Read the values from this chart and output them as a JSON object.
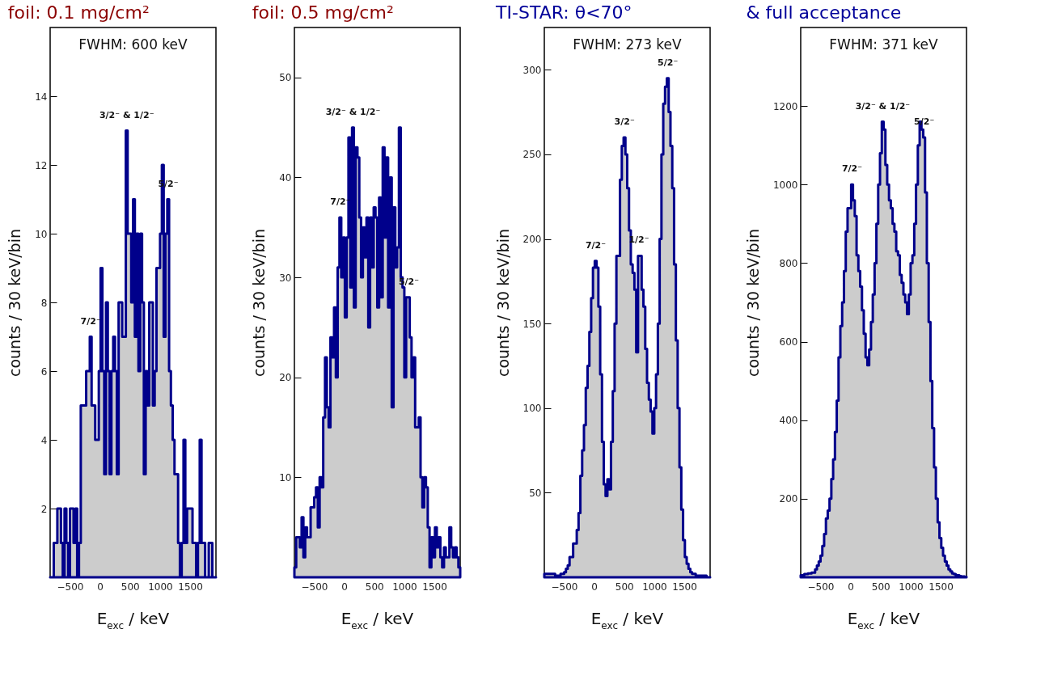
{
  "chart_data": [
    {
      "type": "histogram",
      "title": "foil: 0.1 mg/cm²",
      "xlabel": "E$_{exc}$ / keV",
      "ylabel": "counts / 30 keV/bin",
      "color": "#00008b",
      "xlim": [
        -830,
        1930
      ],
      "xticks": [
        -500,
        0,
        500,
        1000,
        1500
      ],
      "ylim": [
        0,
        16
      ],
      "yticks": [
        2,
        4,
        6,
        8,
        10,
        12,
        14
      ],
      "bins": [
        -830,
        -800,
        -770,
        -740,
        -710,
        -680,
        -650,
        -620,
        -590,
        -560,
        -530,
        -500,
        -470,
        -440,
        -410,
        -380,
        -350,
        -320,
        -290,
        -260,
        -230,
        -200,
        -170,
        -140,
        -110,
        -80,
        -50,
        -20,
        10,
        40,
        70,
        100,
        130,
        160,
        190,
        220,
        250,
        280,
        310,
        340,
        370,
        400,
        430,
        460,
        490,
        520,
        550,
        580,
        610,
        640,
        670,
        700,
        730,
        760,
        790,
        820,
        850,
        880,
        910,
        940,
        970,
        1000,
        1030,
        1060,
        1090,
        1120,
        1150,
        1180,
        1210,
        1240,
        1270,
        1300,
        1330,
        1360,
        1390,
        1420,
        1450,
        1480,
        1510,
        1540,
        1570,
        1600,
        1630,
        1660,
        1690,
        1720,
        1750,
        1780,
        1810,
        1840,
        1870,
        1900,
        1930
      ],
      "values": [
        0,
        0,
        1,
        1,
        2,
        2,
        1,
        0,
        2,
        1,
        0,
        2,
        2,
        1,
        2,
        0,
        1,
        5,
        5,
        5,
        6,
        6,
        7,
        5,
        5,
        4,
        4,
        6,
        9,
        6,
        3,
        8,
        6,
        3,
        6,
        7,
        6,
        3,
        8,
        8,
        7,
        7,
        13,
        10,
        10,
        8,
        11,
        7,
        10,
        6,
        10,
        8,
        3,
        6,
        5,
        8,
        8,
        5,
        6,
        9,
        9,
        10,
        12,
        7,
        10,
        11,
        6,
        5,
        4,
        3,
        3,
        1,
        0,
        1,
        4,
        1,
        2,
        2,
        2,
        1,
        1,
        0,
        1,
        4,
        1,
        1,
        0,
        0,
        1,
        1,
        0,
        0
      ],
      "annotations": [
        "FWHM: 600 keV",
        {
          "text": "7/2⁻",
          "x": -155,
          "y": 7
        },
        {
          "text": "3/2⁻ & 1/2⁻",
          "x": 445,
          "y": 13
        },
        {
          "text": "5/2⁻",
          "x": 1135,
          "y": 11
        }
      ]
    },
    {
      "type": "histogram",
      "title": "foil: 0.5 mg/cm²",
      "xlabel": "E$_{exc}$ / keV",
      "ylabel": "counts / 30 keV/bin",
      "color": "#00008b",
      "xlim": [
        -830,
        1930
      ],
      "xticks": [
        -500,
        0,
        500,
        1000,
        1500
      ],
      "ylim": [
        0,
        55
      ],
      "yticks": [
        10,
        20,
        30,
        40,
        50
      ],
      "bins": [
        -830,
        -800,
        -770,
        -740,
        -710,
        -680,
        -650,
        -620,
        -590,
        -560,
        -530,
        -500,
        -470,
        -440,
        -410,
        -380,
        -350,
        -320,
        -290,
        -260,
        -230,
        -200,
        -170,
        -140,
        -110,
        -80,
        -50,
        -20,
        10,
        40,
        70,
        100,
        130,
        160,
        190,
        220,
        250,
        280,
        310,
        340,
        370,
        400,
        430,
        460,
        490,
        520,
        550,
        580,
        610,
        640,
        670,
        700,
        730,
        760,
        790,
        820,
        850,
        880,
        910,
        940,
        970,
        1000,
        1030,
        1060,
        1090,
        1120,
        1150,
        1180,
        1210,
        1240,
        1270,
        1300,
        1330,
        1360,
        1390,
        1420,
        1450,
        1480,
        1510,
        1540,
        1570,
        1600,
        1630,
        1660,
        1690,
        1720,
        1750,
        1780,
        1810,
        1840,
        1870,
        1900,
        1930
      ],
      "values": [
        1,
        4,
        4,
        3,
        6,
        2,
        5,
        4,
        4,
        7,
        7,
        8,
        9,
        5,
        10,
        9,
        16,
        22,
        17,
        15,
        24,
        22,
        27,
        20,
        31,
        36,
        30,
        34,
        26,
        34,
        44,
        29,
        45,
        27,
        43,
        42,
        36,
        30,
        35,
        32,
        36,
        25,
        36,
        31,
        37,
        36,
        27,
        38,
        28,
        43,
        34,
        42,
        27,
        40,
        17,
        37,
        31,
        33,
        45,
        30,
        29,
        20,
        28,
        28,
        24,
        20,
        22,
        15,
        15,
        16,
        10,
        7,
        10,
        9,
        5,
        1,
        4,
        2,
        5,
        3,
        4,
        2,
        1,
        3,
        2,
        2,
        5,
        3,
        2,
        3,
        2,
        1
      ],
      "annotations": [
        {
          "text": "7/2⁻",
          "x": -65,
          "y": 36
        },
        {
          "text": "3/2⁻ & 1/2⁻",
          "x": 145,
          "y": 45
        },
        {
          "text": "5/2⁻",
          "x": 1075,
          "y": 28
        }
      ]
    },
    {
      "type": "histogram",
      "title": "TI-STAR: θ<70°",
      "xlabel": "E$_{exc}$ / keV",
      "ylabel": "counts / 30 keV/bin",
      "color": "#00008b",
      "xlim": [
        -830,
        1930
      ],
      "xticks": [
        -500,
        0,
        500,
        1000,
        1500
      ],
      "ylim": [
        0,
        325
      ],
      "yticks": [
        50,
        100,
        150,
        200,
        250,
        300
      ],
      "bins": [
        -830,
        -800,
        -770,
        -740,
        -710,
        -680,
        -650,
        -620,
        -590,
        -560,
        -530,
        -500,
        -470,
        -440,
        -410,
        -380,
        -350,
        -320,
        -290,
        -260,
        -230,
        -200,
        -170,
        -140,
        -110,
        -80,
        -50,
        -20,
        10,
        40,
        70,
        100,
        130,
        160,
        190,
        220,
        250,
        280,
        310,
        340,
        370,
        400,
        430,
        460,
        490,
        520,
        550,
        580,
        610,
        640,
        670,
        700,
        730,
        760,
        790,
        820,
        850,
        880,
        910,
        940,
        970,
        1000,
        1030,
        1060,
        1090,
        1120,
        1150,
        1180,
        1210,
        1240,
        1270,
        1300,
        1330,
        1360,
        1390,
        1420,
        1450,
        1480,
        1510,
        1540,
        1570,
        1600,
        1630,
        1660,
        1690,
        1720,
        1750,
        1780,
        1810,
        1840,
        1870,
        1900,
        1930
      ],
      "values": [
        2,
        2,
        2,
        2,
        2,
        2,
        1,
        1,
        1,
        2,
        2,
        3,
        5,
        7,
        12,
        12,
        20,
        20,
        28,
        38,
        60,
        75,
        90,
        112,
        125,
        145,
        165,
        183,
        187,
        183,
        160,
        120,
        80,
        55,
        48,
        58,
        52,
        80,
        110,
        150,
        190,
        190,
        235,
        255,
        260,
        250,
        230,
        205,
        185,
        180,
        170,
        133,
        190,
        190,
        170,
        160,
        135,
        115,
        105,
        98,
        85,
        100,
        120,
        150,
        200,
        250,
        280,
        290,
        295,
        275,
        255,
        230,
        185,
        140,
        100,
        65,
        40,
        22,
        12,
        8,
        5,
        3,
        2,
        2,
        1,
        1,
        1,
        1,
        1,
        1,
        0,
        0
      ],
      "annotations": [
        "FWHM: 273 keV",
        {
          "text": "7/2⁻",
          "x": 25,
          "y": 187
        },
        {
          "text": "3/2⁻",
          "x": 505,
          "y": 260
        },
        {
          "text": "1/2⁻",
          "x": 745,
          "y": 190
        },
        {
          "text": "5/2⁻",
          "x": 1225,
          "y": 295
        }
      ]
    },
    {
      "type": "histogram",
      "title": "&  full acceptance",
      "xlabel": "E$_{exc}$ / keV",
      "ylabel": "counts / 30 keV/bin",
      "color": "#00008b",
      "xlim": [
        -830,
        1930
      ],
      "xticks": [
        -500,
        0,
        500,
        1000,
        1500
      ],
      "ylim": [
        0,
        1400
      ],
      "yticks": [
        200,
        400,
        600,
        800,
        1000,
        1200
      ],
      "bins": [
        -830,
        -800,
        -770,
        -740,
        -710,
        -680,
        -650,
        -620,
        -590,
        -560,
        -530,
        -500,
        -470,
        -440,
        -410,
        -380,
        -350,
        -320,
        -290,
        -260,
        -230,
        -200,
        -170,
        -140,
        -110,
        -80,
        -50,
        -20,
        10,
        40,
        70,
        100,
        130,
        160,
        190,
        220,
        250,
        280,
        310,
        340,
        370,
        400,
        430,
        460,
        490,
        520,
        550,
        580,
        610,
        640,
        670,
        700,
        730,
        760,
        790,
        820,
        850,
        880,
        910,
        940,
        970,
        1000,
        1030,
        1060,
        1090,
        1120,
        1150,
        1180,
        1210,
        1240,
        1270,
        1300,
        1330,
        1360,
        1390,
        1420,
        1450,
        1480,
        1510,
        1540,
        1570,
        1600,
        1630,
        1660,
        1690,
        1720,
        1750,
        1780,
        1810,
        1840,
        1870,
        1900,
        1930
      ],
      "values": [
        5,
        5,
        8,
        8,
        10,
        10,
        12,
        12,
        20,
        30,
        40,
        55,
        80,
        110,
        150,
        170,
        200,
        250,
        300,
        370,
        450,
        560,
        640,
        700,
        780,
        880,
        940,
        940,
        1000,
        960,
        920,
        820,
        780,
        740,
        680,
        620,
        560,
        540,
        580,
        650,
        720,
        800,
        900,
        1000,
        1080,
        1160,
        1140,
        1050,
        1000,
        960,
        940,
        900,
        880,
        830,
        820,
        770,
        750,
        720,
        700,
        670,
        720,
        800,
        820,
        900,
        1000,
        1100,
        1160,
        1140,
        1120,
        980,
        800,
        650,
        500,
        380,
        280,
        200,
        140,
        100,
        75,
        55,
        40,
        30,
        20,
        15,
        10,
        8,
        5,
        5,
        3,
        2,
        2,
        1
      ],
      "annotations": [
        "FWHM: 371 keV",
        {
          "text": "7/2⁻",
          "x": 25,
          "y": 1000
        },
        {
          "text": "3/2⁻ & 1/2⁻",
          "x": 535,
          "y": 1160
        },
        {
          "text": "5/2⁻",
          "x": 1225,
          "y": 1120
        }
      ]
    }
  ]
}
